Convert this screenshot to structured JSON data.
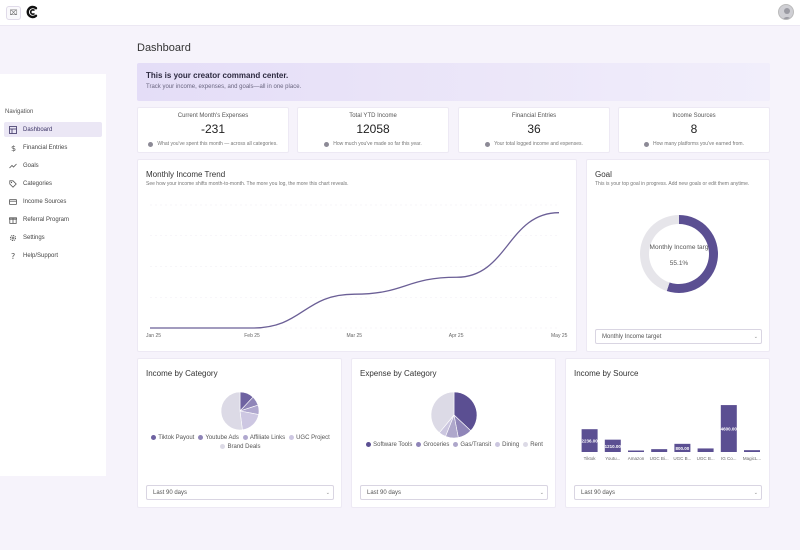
{
  "header": {
    "menu_label": "⌧"
  },
  "navigation": {
    "title": "Navigation",
    "items": [
      {
        "label": "Dashboard",
        "icon": "dashboard-icon",
        "active": true
      },
      {
        "label": "Financial Entries",
        "icon": "dollar-icon"
      },
      {
        "label": "Goals",
        "icon": "trend-icon"
      },
      {
        "label": "Categories",
        "icon": "tag-icon"
      },
      {
        "label": "Income Sources",
        "icon": "card-icon"
      },
      {
        "label": "Referral Program",
        "icon": "gift-icon"
      },
      {
        "label": "Settings",
        "icon": "gear-icon"
      },
      {
        "label": "Help/Support",
        "icon": "question-icon"
      }
    ]
  },
  "page": {
    "title": "Dashboard"
  },
  "banner": {
    "title": "This is your creator command center.",
    "subtitle": "Track your income, expenses, and goals—all in one place."
  },
  "stats": [
    {
      "label": "Current Month's Expenses",
      "value": "-231",
      "hint": "What you've spent this month — across all categories."
    },
    {
      "label": "Total YTD Income",
      "value": "12058",
      "hint": "How much you've made so far this year."
    },
    {
      "label": "Financial Entries",
      "value": "36",
      "hint": "Your total logged income and expenses."
    },
    {
      "label": "Income Sources",
      "value": "8",
      "hint": "How many platforms you've earned from."
    }
  ],
  "trend": {
    "title": "Monthly Income Trend",
    "subtitle": "See how your income shifts month-to-month. The more you log, the more this chart reveals."
  },
  "goal": {
    "title": "Goal",
    "subtitle": "This is your top goal in progress. Add new goals or edit them anytime.",
    "center_label": "Monthly Income targ",
    "percent": "55.1%",
    "progress": 0.551,
    "select_value": "Monthly Income target"
  },
  "income_category": {
    "title": "Income by Category",
    "select_value": "Last 90 days"
  },
  "expense_category": {
    "title": "Expense by Category",
    "select_value": "Last 90 days"
  },
  "income_source": {
    "title": "Income by Source",
    "select_value": "Last 90 days"
  },
  "chart_data": [
    {
      "type": "line",
      "title": "Monthly Income Trend",
      "x": [
        "Jan 25",
        "Feb 25",
        "Mar 25",
        "Apr 25",
        "May 25"
      ],
      "tick_labels": [
        "Jan 25",
        "Feb 25",
        "Mar 25",
        "Apr 25",
        "May 25"
      ],
      "series": [
        {
          "values": [
            0,
            0,
            2200,
            3300,
            7500
          ]
        }
      ],
      "ylim": [
        0,
        8000
      ],
      "grid": true,
      "color": "#6b5f96"
    },
    {
      "type": "pie",
      "title": "Goal",
      "values": [
        55.1,
        44.9
      ],
      "colors": [
        "#5b4f92",
        "#e6e5ea"
      ]
    },
    {
      "type": "pie",
      "title": "Income by Category",
      "categories": [
        "Tiktok Payout",
        "Youtube Ads",
        "Affiliate Links",
        "UGC Project",
        "Brand Deals"
      ],
      "values": [
        12,
        8,
        8,
        20,
        52
      ],
      "colors": [
        "#6e62a1",
        "#8f85b8",
        "#b0a8cf",
        "#cdc7e2",
        "#dcdae6"
      ],
      "legend": "bottom"
    },
    {
      "type": "pie",
      "title": "Expense by Category",
      "categories": [
        "Software Tools",
        "Groceries",
        "Gas/Transit",
        "Dining",
        "Rent"
      ],
      "values": [
        37,
        10,
        9,
        5,
        39
      ],
      "colors": [
        "#5b4f92",
        "#8f85b8",
        "#aea7cb",
        "#cbc6df",
        "#dcdae6"
      ],
      "legend": "bottom"
    },
    {
      "type": "bar",
      "title": "Income by Source",
      "categories": [
        "Tiktok",
        "Youtu...",
        "Amazon",
        "UGC Bi...",
        "UGC B...",
        "UGC B...",
        "IG Co...",
        "MagicL..."
      ],
      "values": [
        2236,
        1210,
        50,
        280,
        800,
        350,
        4600,
        180
      ],
      "value_labels": [
        "2236.00",
        "1210.00",
        "50.00",
        "280.00",
        "800.00",
        "350.00",
        "4600.00",
        "180.00"
      ],
      "ylim": [
        0,
        5000
      ],
      "color": "#5b4f92"
    }
  ]
}
